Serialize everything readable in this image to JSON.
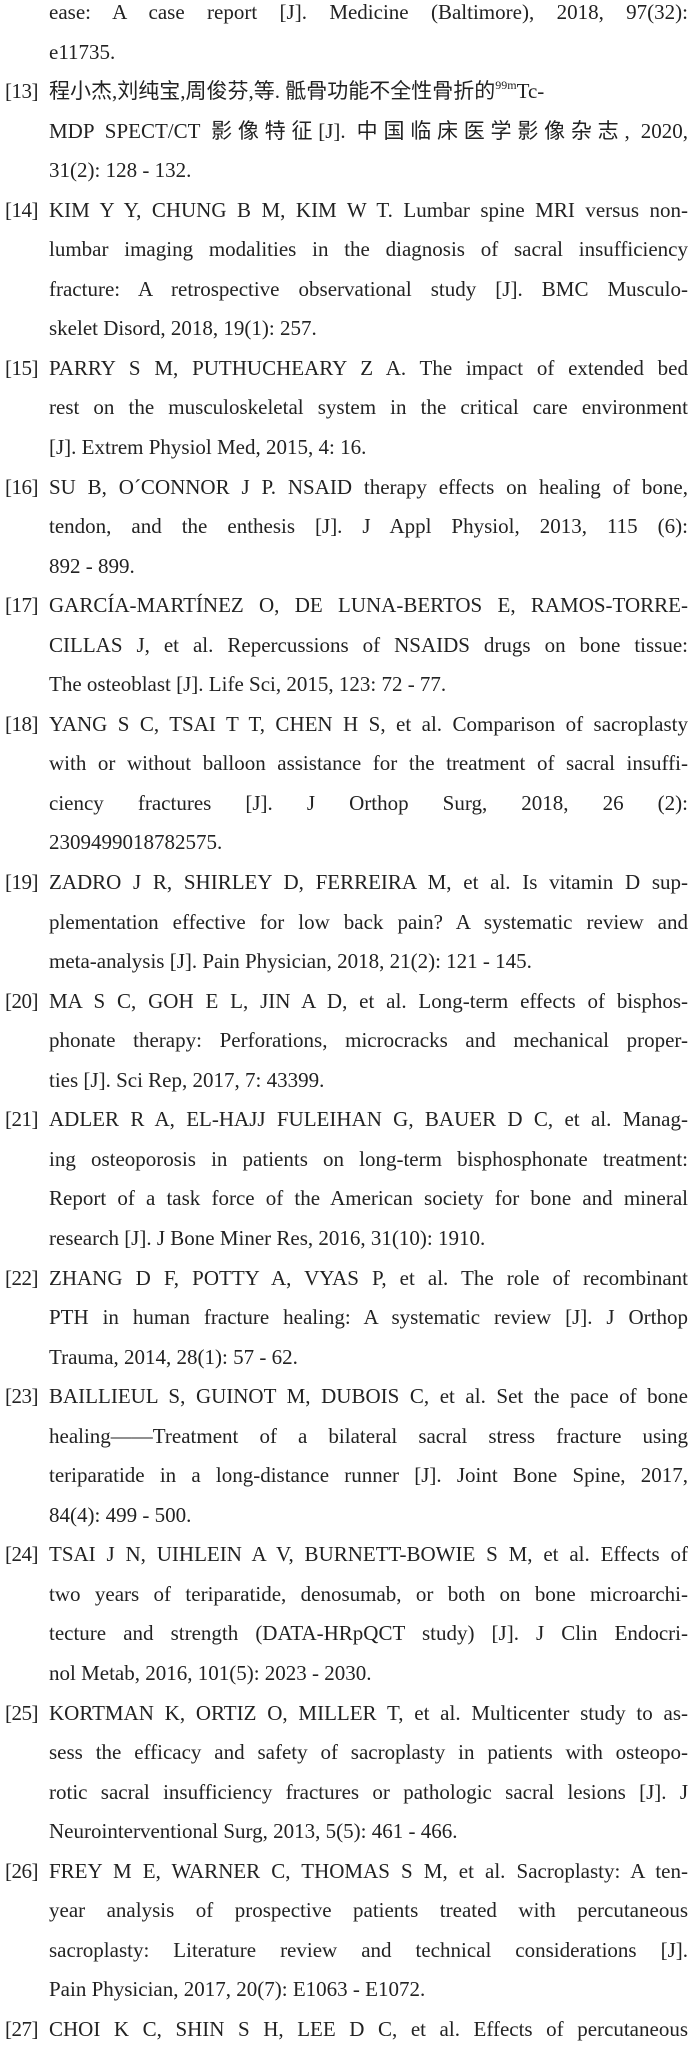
{
  "references": [
    {
      "num": "",
      "lines": [
        "ease: A case report [J]. Medicine (Baltimore), 2018, 97(32):",
        "e11735."
      ]
    },
    {
      "num": "[13]",
      "lines": [
        {
          "pre": "程小杰,刘纯宝,周俊芬,等. 骶骨功能不全性骨折的",
          "sup": "99m",
          "post": "Tc-"
        },
        "MDP SPECT/CT 影像特征[J]. 中国临床医学影像杂志, 2020,",
        "31(2): 128 - 132."
      ]
    },
    {
      "num": "[14]",
      "lines": [
        "KIM Y Y, CHUNG B M, KIM W T. Lumbar spine MRI versus non-",
        "lumbar imaging modalities in the diagnosis of sacral insufficiency",
        "fracture: A retrospective observational study [J]. BMC Musculo-",
        "skelet Disord, 2018, 19(1): 257."
      ]
    },
    {
      "num": "[15]",
      "lines": [
        "PARRY S M, PUTHUCHEARY Z A. The impact of extended bed",
        "rest on the musculoskeletal system in the critical care environment",
        "[J]. Extrem Physiol Med, 2015, 4: 16."
      ]
    },
    {
      "num": "[16]",
      "lines": [
        "SU B, O´CONNOR J P. NSAID therapy effects on healing of bone,",
        "tendon, and the enthesis [J]. J Appl Physiol, 2013, 115 (6):",
        "892 - 899."
      ]
    },
    {
      "num": "[17]",
      "lines": [
        "GARCÍA-MARTÍNEZ O, DE LUNA-BERTOS E, RAMOS-TORRE-",
        "CILLAS J, et al. Repercussions of NSAIDS drugs on bone tissue:",
        "The osteoblast [J]. Life Sci, 2015, 123: 72 - 77."
      ]
    },
    {
      "num": "[18]",
      "lines": [
        "YANG S C, TSAI T T, CHEN H S, et al. Comparison of sacroplasty",
        "with or without balloon assistance for the treatment of sacral insuffi-",
        "ciency fractures [J]. J Orthop Surg, 2018, 26 (2):",
        "2309499018782575."
      ]
    },
    {
      "num": "[19]",
      "lines": [
        "ZADRO J R, SHIRLEY D, FERREIRA M, et al. Is vitamin D sup-",
        "plementation effective for low back pain? A systematic review and",
        "meta-analysis [J]. Pain Physician, 2018, 21(2): 121 - 145."
      ]
    },
    {
      "num": "[20]",
      "lines": [
        "MA S C, GOH E L, JIN A D, et al. Long-term effects of bisphos-",
        "phonate therapy: Perforations, microcracks and mechanical proper-",
        "ties [J]. Sci Rep, 2017, 7: 43399."
      ]
    },
    {
      "num": "[21]",
      "lines": [
        "ADLER R A, EL-HAJJ FULEIHAN G, BAUER D C, et al. Manag-",
        "ing osteoporosis in patients on long-term bisphosphonate treatment:",
        "Report of a task force of the American society for bone and mineral",
        "research [J]. J Bone Miner Res, 2016, 31(10): 1910."
      ]
    },
    {
      "num": "[22]",
      "lines": [
        "ZHANG D F, POTTY A, VYAS P, et al. The role of recombinant",
        "PTH in human fracture healing: A systematic review [J]. J Orthop",
        "Trauma, 2014, 28(1): 57 - 62."
      ]
    },
    {
      "num": "[23]",
      "lines": [
        "BAILLIEUL S, GUINOT M, DUBOIS C, et al. Set the pace of bone",
        "healing——Treatment of a bilateral sacral stress fracture using",
        "teriparatide in a long-distance runner [J]. Joint Bone Spine, 2017,",
        "84(4): 499 - 500."
      ]
    },
    {
      "num": "[24]",
      "lines": [
        "TSAI J N, UIHLEIN A V, BURNETT-BOWIE S M, et al. Effects of",
        "two years of teriparatide, denosumab, or both on bone microarchi-",
        "tecture and strength (DATA-HRpQCT study) [J]. J Clin Endocri-",
        "nol Metab, 2016, 101(5): 2023 - 2030."
      ]
    },
    {
      "num": "[25]",
      "lines": [
        "KORTMAN K, ORTIZ O, MILLER T, et al. Multicenter study to as-",
        "sess the efficacy and safety of sacroplasty in patients with osteopo-",
        "rotic sacral insufficiency fractures or pathologic sacral lesions [J]. J",
        "Neurointerventional Surg, 2013, 5(5): 461 - 466."
      ]
    },
    {
      "num": "[26]",
      "lines": [
        "FREY M E, WARNER C, THOMAS S M, et al. Sacroplasty: A ten-",
        "year analysis of prospective patients treated with percutaneous",
        "sacroplasty: Literature review and technical considerations [J].",
        "Pain Physician, 2017, 20(7): E1063 - E1072."
      ]
    },
    {
      "num": "[27]",
      "lines": [
        "CHOI K C, SHIN S H, LEE D C, et al. Effects of percutaneous"
      ]
    }
  ]
}
